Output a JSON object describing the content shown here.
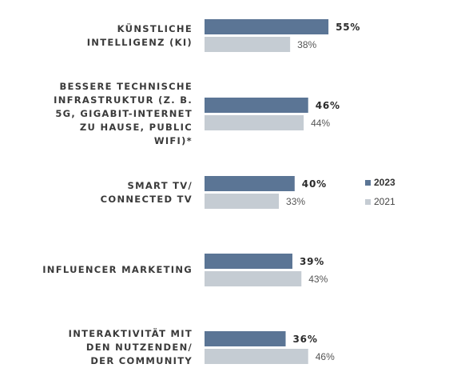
{
  "chart_data": {
    "type": "bar",
    "orientation": "horizontal",
    "categories": [
      [
        "KÜNSTLICHE",
        "INTELLIGENZ (KI)"
      ],
      [
        "BESSERE TECHNISCHE",
        "INFRASTRUKTUR (Z. B.",
        "5G, GIGABIT-INTERNET",
        "ZU HAUSE, PUBLIC",
        "WIFI)*"
      ],
      [
        "SMART TV/",
        "CONNECTED TV"
      ],
      [
        "INFLUENCER MARKETING"
      ],
      [
        "INTERAKTIVITÄT MIT",
        "DEN NUTZENDEN/",
        "DER COMMUNITY"
      ]
    ],
    "series": [
      {
        "name": "2023",
        "color": "#5b7595",
        "values": [
          55,
          46,
          40,
          39,
          36
        ]
      },
      {
        "name": "2021",
        "color": "#c5ccd3",
        "values": [
          38,
          44,
          33,
          43,
          46
        ]
      }
    ],
    "value_suffix": "%",
    "xlim": [
      0,
      100
    ],
    "legend_position": "right",
    "grid": false
  }
}
